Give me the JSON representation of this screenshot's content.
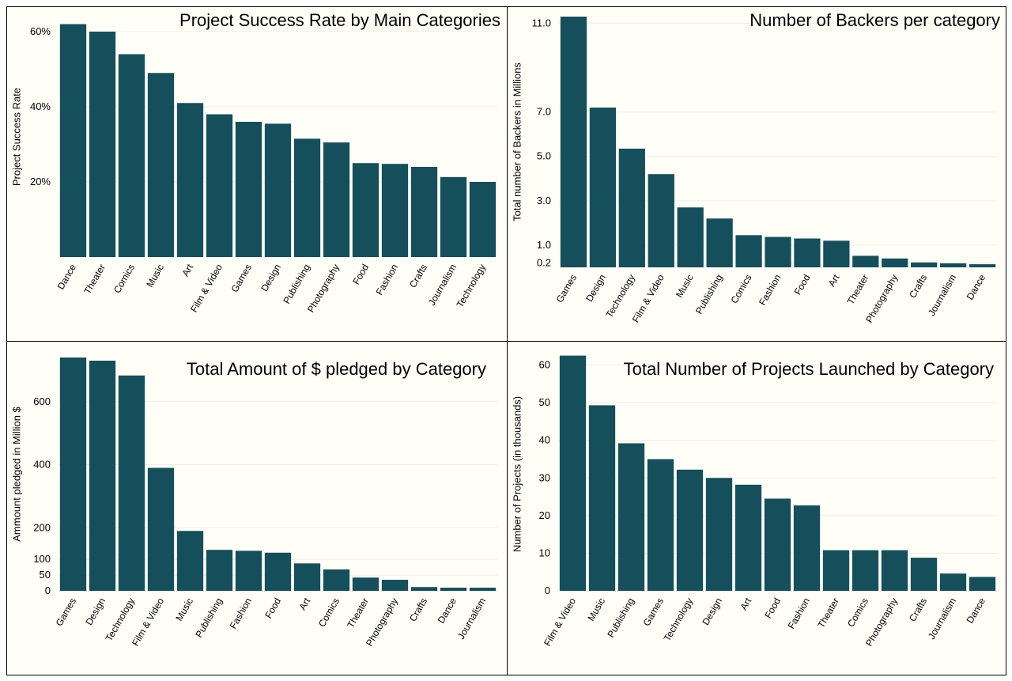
{
  "bar_color": "#154f5b",
  "background_color": "#fffff8",
  "chart_data": [
    {
      "id": "success-rate",
      "type": "bar",
      "title": "Project Success Rate by Main Categories",
      "ylabel": "Project Success Rate",
      "ylim": [
        0,
        0.64
      ],
      "yticks": [
        0.2,
        0.4,
        0.6
      ],
      "ytick_labels": [
        "20%",
        "40%",
        "60%"
      ],
      "categories": [
        "Dance",
        "Theater",
        "Comics",
        "Music",
        "Art",
        "Film & Video",
        "Games",
        "Design",
        "Publishing",
        "Photography",
        "Food",
        "Fashion",
        "Crafts",
        "Journalism",
        "Technology"
      ],
      "values": [
        0.62,
        0.6,
        0.54,
        0.49,
        0.41,
        0.38,
        0.36,
        0.355,
        0.315,
        0.305,
        0.25,
        0.248,
        0.24,
        0.213,
        0.2
      ],
      "grid": true
    },
    {
      "id": "backers",
      "type": "bar",
      "title": "Number of Backers per category",
      "ylabel": "Total number of Backers in Millions",
      "ylim": [
        0,
        11.3
      ],
      "yticks": [
        0.2,
        1.0,
        3.0,
        5.0,
        7.0,
        11.0
      ],
      "ytick_labels": [
        "0.2",
        "1.0",
        "3.0",
        "5.0",
        "7.0",
        "11.0"
      ],
      "categories": [
        "Games",
        "Design",
        "Technology",
        "Film & Video",
        "Music",
        "Publishing",
        "Comics",
        "Fashion",
        "Food",
        "Art",
        "Theater",
        "Photography",
        "Crafts",
        "Journalism",
        "Dance"
      ],
      "values": [
        11.3,
        7.2,
        5.35,
        4.2,
        2.7,
        2.2,
        1.45,
        1.37,
        1.3,
        1.2,
        0.52,
        0.4,
        0.22,
        0.18,
        0.14
      ],
      "grid": true
    },
    {
      "id": "pledged",
      "type": "bar",
      "title": "Total Amount of $ pledged by Category",
      "ylabel": "Ammount pledged in Million $",
      "ylim": [
        0,
        740
      ],
      "yticks": [
        0,
        50,
        100,
        200,
        400,
        600
      ],
      "ytick_labels": [
        "0",
        "50",
        "100",
        "200",
        "400",
        "600"
      ],
      "categories": [
        "Games",
        "Design",
        "Technology",
        "Film & Video",
        "Music",
        "Publishing",
        "Fashion",
        "Food",
        "Art",
        "Comics",
        "Theater",
        "Photography",
        "Crafts",
        "Dance",
        "Journalism"
      ],
      "values": [
        740,
        730,
        683,
        390,
        190,
        130,
        127,
        121,
        87,
        68,
        42,
        35,
        12,
        10,
        10
      ],
      "grid": true
    },
    {
      "id": "projects",
      "type": "bar",
      "title": "Total Number of Projects Launched by Category",
      "ylabel": "Number of Projects (in thousands)",
      "ylim": [
        0,
        62
      ],
      "yticks": [
        0,
        10,
        20,
        30,
        40,
        50,
        60
      ],
      "ytick_labels": [
        "0",
        "10",
        "20",
        "30",
        "40",
        "50",
        "60"
      ],
      "categories": [
        "Film & Video",
        "Music",
        "Publishing",
        "Games",
        "Technology",
        "Design",
        "Art",
        "Food",
        "Fashion",
        "Theater",
        "Comics",
        "Photography",
        "Crafts",
        "Journalism",
        "Dance"
      ],
      "values": [
        62.5,
        49.3,
        39.2,
        35.0,
        32.2,
        30.0,
        28.2,
        24.5,
        22.7,
        10.8,
        10.8,
        10.8,
        8.8,
        4.6,
        3.7
      ],
      "grid": true
    }
  ]
}
